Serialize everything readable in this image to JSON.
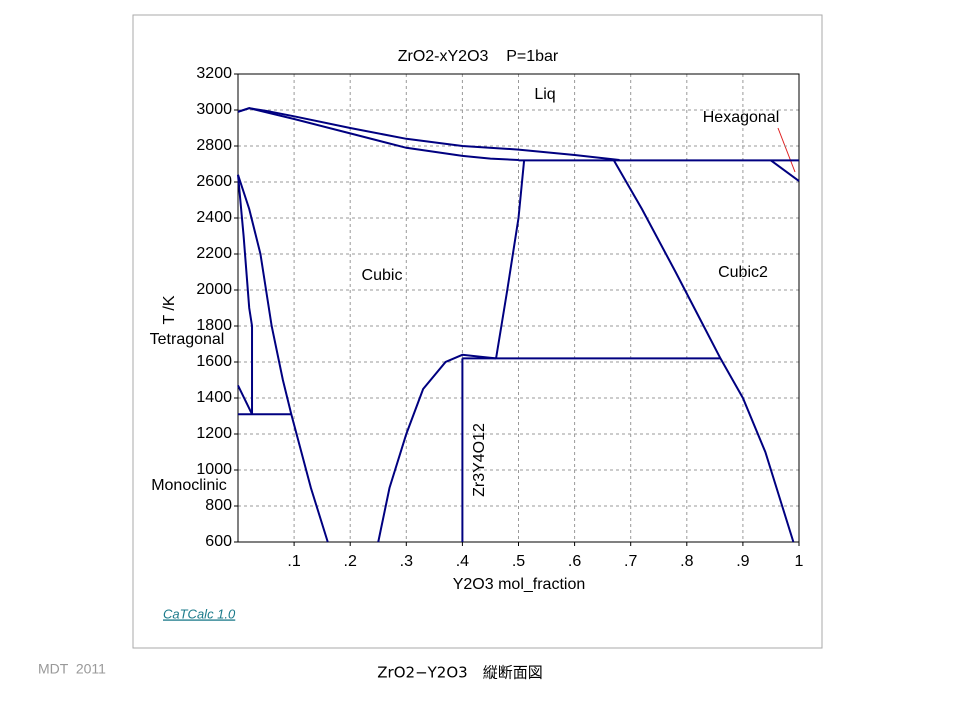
{
  "chart_data": {
    "type": "line",
    "title": "ZrO2-xY2O3    P=1bar",
    "x_label": "Y2O3 mol_fraction",
    "y_label": "T /K",
    "xlim": [
      0,
      1
    ],
    "ylim": [
      600,
      3200
    ],
    "xticks": [
      {
        "value": 0.1,
        "label": ".1"
      },
      {
        "value": 0.2,
        "label": ".2"
      },
      {
        "value": 0.3,
        "label": ".3"
      },
      {
        "value": 0.4,
        "label": ".4"
      },
      {
        "value": 0.5,
        "label": ".5"
      },
      {
        "value": 0.6,
        "label": ".6"
      },
      {
        "value": 0.7,
        "label": ".7"
      },
      {
        "value": 0.8,
        "label": ".8"
      },
      {
        "value": 0.9,
        "label": ".9"
      },
      1
    ],
    "yticks": [
      600,
      800,
      1000,
      1200,
      1400,
      1600,
      1800,
      2000,
      2200,
      2400,
      2600,
      2800,
      3000,
      3200
    ],
    "grid": true,
    "annotations": [
      "Liq",
      "Cubic",
      "Cubic2",
      "Hexagonal",
      "Tetragonal",
      "Monoclinic",
      "Zr3Y4O12"
    ],
    "series": [
      {
        "color": "#000080",
        "x": [
          0,
          0.02,
          0.05,
          0.1,
          0.2,
          0.3,
          0.4,
          0.5,
          0.6,
          0.68
        ],
        "values": [
          2990,
          3010,
          2995,
          2965,
          2900,
          2840,
          2800,
          2780,
          2750,
          2722
        ]
      },
      {
        "color": "#000080",
        "x": [
          0,
          0.02,
          0.1,
          0.2,
          0.3,
          0.4,
          0.45,
          0.5
        ],
        "values": [
          2990,
          3010,
          2950,
          2870,
          2790,
          2745,
          2730,
          2722
        ]
      },
      {
        "color": "#000080",
        "x": [
          0.5,
          1
        ],
        "values": [
          2720,
          2720
        ]
      },
      {
        "color": "#000080",
        "x": [
          0.95,
          1
        ],
        "values": [
          2720,
          2605
        ]
      },
      {
        "color": "#000080",
        "x": [
          0.46,
          0.48,
          0.5,
          0.51
        ],
        "values": [
          1620,
          2000,
          2400,
          2720
        ]
      },
      {
        "color": "#000080",
        "x": [
          0.67,
          0.72,
          0.78,
          0.83,
          0.86,
          0.9,
          0.94,
          0.97,
          0.99
        ],
        "values": [
          2720,
          2450,
          2100,
          1800,
          1620,
          1400,
          1100,
          800,
          600
        ]
      },
      {
        "color": "#000080",
        "x": [
          0.4,
          0.86
        ],
        "values": [
          1620,
          1620
        ]
      },
      {
        "color": "#000080",
        "x": [
          0.25,
          0.27,
          0.3,
          0.33,
          0.37,
          0.4,
          0.43,
          0.46
        ],
        "values": [
          600,
          900,
          1200,
          1450,
          1600,
          1640,
          1630,
          1620
        ]
      },
      {
        "color": "#000080",
        "x": [
          0.4,
          0.4
        ],
        "values": [
          600,
          1620
        ]
      },
      {
        "color": "#000080",
        "x": [
          0,
          0.02,
          0.04,
          0.06,
          0.08,
          0.095,
          0.13,
          0.16
        ],
        "values": [
          2640,
          2450,
          2200,
          1800,
          1500,
          1310,
          900,
          600
        ]
      },
      {
        "color": "#000080",
        "x": [
          0,
          0.01,
          0.02,
          0.025,
          0.025
        ],
        "values": [
          2640,
          2300,
          1900,
          1800,
          1310
        ]
      },
      {
        "color": "#000080",
        "x": [
          0,
          0.095
        ],
        "values": [
          1310,
          1310
        ]
      },
      {
        "color": "#000080",
        "x": [
          0,
          0.025
        ],
        "values": [
          1470,
          1310
        ]
      }
    ]
  },
  "footer": {
    "software": "CaTCalc 1.0",
    "author": "MDT  2011",
    "caption": "ZrO2−Y2O3　縦断面図"
  }
}
